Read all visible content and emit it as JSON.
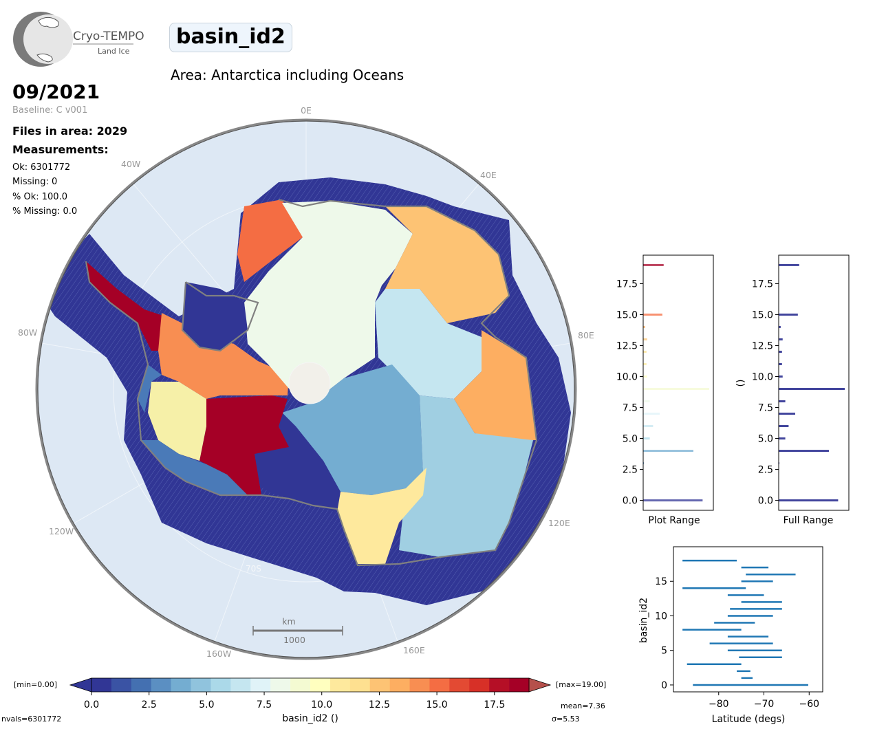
{
  "header": {
    "logo_text": "Cryo-TEMPO",
    "logo_sub": "Land Ice",
    "title": "basin_id2",
    "area": "Area: Antarctica including Oceans",
    "date": "09/2021",
    "baseline": "Baseline: C v001",
    "files": "Files in area: 2029",
    "measurements_title": "Measurements:",
    "ok": "Ok: 6301772",
    "missing": "Missing: 0",
    "pct_ok": "% Ok: 100.0",
    "pct_missing": "% Missing: 0.0"
  },
  "map": {
    "lon_labels": [
      "0E",
      "40E",
      "80E",
      "120E",
      "160E",
      "160W",
      "120W",
      "80W",
      "40W"
    ],
    "lat_label": "70S",
    "scale_unit": "km",
    "scale_value": "1000"
  },
  "colorbar": {
    "min_label": "[min=0.00]",
    "max_label": "[max=19.00]",
    "ticks": [
      "0.0",
      "2.5",
      "5.0",
      "7.5",
      "10.0",
      "12.5",
      "15.0",
      "17.5"
    ],
    "tick_values": [
      0,
      2.5,
      5,
      7.5,
      10,
      12.5,
      15,
      17.5
    ],
    "range": [
      0,
      19
    ],
    "label": "basin_id2 ()",
    "nvals": "nvals=6301772",
    "mean": "mean=7.36",
    "sigma": "σ=5.53",
    "colors": [
      "#313695",
      "#3a53a4",
      "#4470b1",
      "#5b8fc2",
      "#74add1",
      "#90c3dd",
      "#abd9e9",
      "#c5e6f0",
      "#e0f3f8",
      "#eef9ea",
      "#f4fad2",
      "#ffffbf",
      "#fee99d",
      "#fee090",
      "#fdc374",
      "#fdae61",
      "#f88e52",
      "#f46d43",
      "#e34a33",
      "#d73027",
      "#b50f26",
      "#a50026"
    ]
  },
  "chart_data": [
    {
      "type": "bar",
      "orientation": "horizontal",
      "xlabel": "Plot Range",
      "ylabel": "",
      "ylim": [
        -0.8,
        19.8
      ],
      "yticks": [
        "0.0",
        "2.5",
        "5.0",
        "7.5",
        "10.0",
        "12.5",
        "15.0",
        "17.5"
      ],
      "categories": [
        0,
        1,
        2,
        3,
        4,
        5,
        6,
        7,
        8,
        9,
        10,
        11,
        12,
        13,
        14,
        15,
        16,
        17,
        18,
        19
      ],
      "values": [
        0.9,
        0,
        0,
        0.01,
        0.76,
        0.1,
        0.15,
        0.25,
        0.1,
        1.0,
        0.06,
        0.05,
        0.05,
        0.06,
        0.03,
        0.29,
        0,
        0,
        0,
        0.31
      ]
    },
    {
      "type": "bar",
      "orientation": "horizontal",
      "xlabel": "Full Range",
      "ylabel": "()",
      "ylim": [
        -0.8,
        19.8
      ],
      "yticks": [
        "0.0",
        "2.5",
        "5.0",
        "7.5",
        "10.0",
        "12.5",
        "15.0",
        "17.5"
      ],
      "categories": [
        0,
        1,
        2,
        3,
        4,
        5,
        6,
        7,
        8,
        9,
        10,
        11,
        12,
        13,
        14,
        15,
        16,
        17,
        18,
        19
      ],
      "values": [
        0.9,
        0,
        0,
        0.01,
        0.76,
        0.1,
        0.15,
        0.25,
        0.1,
        1.0,
        0.06,
        0.05,
        0.05,
        0.06,
        0.03,
        0.29,
        0,
        0,
        0,
        0.31
      ]
    },
    {
      "type": "range",
      "xlabel": "Latitude (degs)",
      "ylabel": "basin_id2",
      "xlim": [
        -90,
        -57
      ],
      "ylim": [
        -1,
        20
      ],
      "xticks": [
        "−80",
        "−70",
        "−60"
      ],
      "yticks": [
        "0",
        "5",
        "10",
        "15"
      ],
      "series": [
        {
          "y": 0,
          "min": -85.7,
          "max": -60.2
        },
        {
          "y": 1,
          "min": -75.0,
          "max": -72.5
        },
        {
          "y": 2,
          "min": -76.0,
          "max": -73.0
        },
        {
          "y": 3,
          "min": -87.0,
          "max": -75.0
        },
        {
          "y": 4,
          "min": -75.5,
          "max": -66.0
        },
        {
          "y": 5,
          "min": -78.0,
          "max": -66.0
        },
        {
          "y": 6,
          "min": -82.0,
          "max": -68.0
        },
        {
          "y": 7,
          "min": -78.0,
          "max": -69.0
        },
        {
          "y": 8,
          "min": -88.0,
          "max": -75.0
        },
        {
          "y": 9,
          "min": -81.0,
          "max": -72.0
        },
        {
          "y": 10,
          "min": -78.0,
          "max": -68.0
        },
        {
          "y": 11,
          "min": -77.5,
          "max": -66.0
        },
        {
          "y": 12,
          "min": -75.0,
          "max": -66.0
        },
        {
          "y": 13,
          "min": -78.0,
          "max": -70.0
        },
        {
          "y": 14,
          "min": -88.0,
          "max": -74.0
        },
        {
          "y": 15,
          "min": -75.0,
          "max": -68.0
        },
        {
          "y": 16,
          "min": -74.0,
          "max": -63.0
        },
        {
          "y": 17,
          "min": -75.0,
          "max": -69.0
        },
        {
          "y": 18,
          "min": -88.0,
          "max": -76.0
        }
      ]
    }
  ]
}
